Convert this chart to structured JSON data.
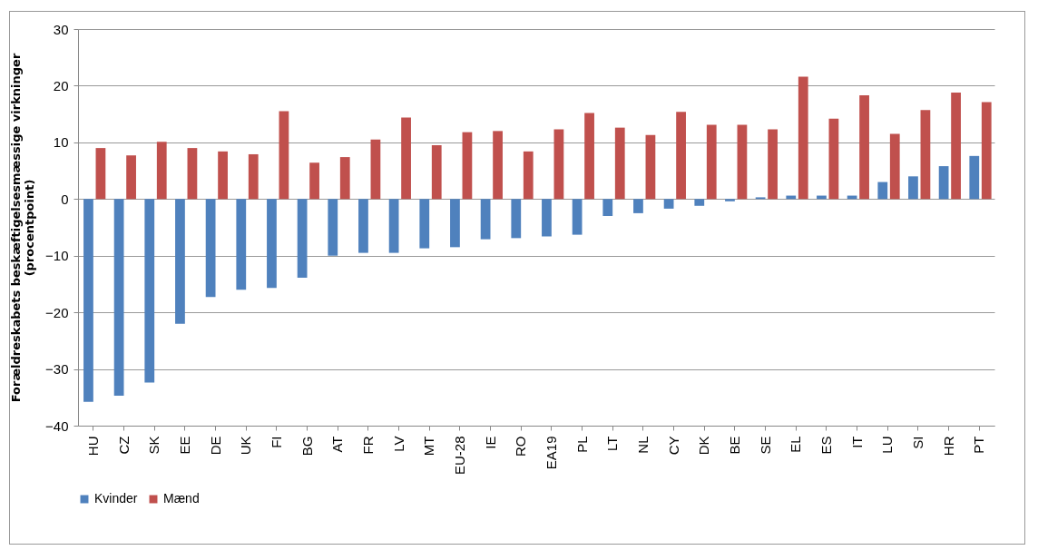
{
  "chart_data": {
    "type": "bar",
    "ylabel": "Forældreskabets beskæftigelsesmæssige virkninger (procentpoint)",
    "categories": [
      "HU",
      "CZ",
      "SK",
      "EE",
      "DE",
      "UK",
      "FI",
      "BG",
      "AT",
      "FR",
      "LV",
      "MT",
      "EU-28",
      "IE",
      "RO",
      "EA19",
      "PL",
      "LT",
      "NL",
      "CY",
      "DK",
      "BE",
      "SE",
      "EL",
      "ES",
      "IT",
      "LU",
      "SI",
      "HR",
      "PT"
    ],
    "series": [
      {
        "name": "Kvinder",
        "color": "#4f81bd",
        "values": [
          -35.8,
          -34.7,
          -32.4,
          -22,
          -17.3,
          -16,
          -15.7,
          -13.9,
          -10,
          -9.5,
          -9.5,
          -8.7,
          -8.5,
          -7.1,
          -6.9,
          -6.6,
          -6.3,
          -3,
          -2.5,
          -1.7,
          -1.2,
          -0.4,
          0.3,
          0.6,
          0.6,
          0.6,
          3,
          4,
          5.8,
          7.6
        ]
      },
      {
        "name": "Mænd",
        "color": "#c0504d",
        "values": [
          9,
          7.7,
          10.1,
          9,
          8.4,
          7.9,
          15.5,
          6.4,
          7.4,
          10.5,
          14.4,
          9.5,
          11.8,
          12,
          8.4,
          12.3,
          15.2,
          12.6,
          11.3,
          15.4,
          13.1,
          13.1,
          12.3,
          21.6,
          14.2,
          18.3,
          11.5,
          15.7,
          18.8,
          17.1
        ]
      }
    ],
    "ylim": [
      -40,
      30
    ],
    "yticks": [
      -40,
      -30,
      -20,
      -10,
      0,
      10,
      20,
      30
    ],
    "grid": "y",
    "legend": "bottom"
  }
}
